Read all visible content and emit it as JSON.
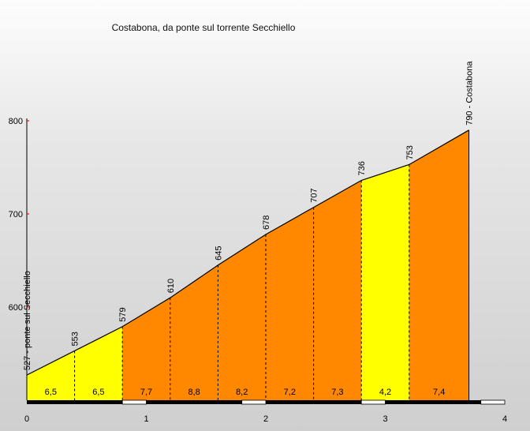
{
  "chart_data": {
    "type": "area",
    "title": "Costabona, da ponte sul torrente Secchiello",
    "xlabel": "",
    "ylabel": "",
    "xlim": [
      0,
      4
    ],
    "ylim": [
      510,
      800
    ],
    "x_ticks": [
      "0",
      "1",
      "2",
      "3",
      "4"
    ],
    "y_ticks": [
      "600",
      "700",
      "800"
    ],
    "grid": false,
    "points": [
      {
        "x": 0.0,
        "y": 527,
        "label": "527 - ponte sul Secchiello"
      },
      {
        "x": 0.4,
        "y": 553,
        "label": "553"
      },
      {
        "x": 0.8,
        "y": 579,
        "label": "579"
      },
      {
        "x": 1.2,
        "y": 610,
        "label": "610"
      },
      {
        "x": 1.6,
        "y": 645,
        "label": "645"
      },
      {
        "x": 2.0,
        "y": 678,
        "label": "678"
      },
      {
        "x": 2.4,
        "y": 707,
        "label": "707"
      },
      {
        "x": 2.8,
        "y": 736,
        "label": "736"
      },
      {
        "x": 3.2,
        "y": 753,
        "label": "753"
      },
      {
        "x": 3.7,
        "y": 790,
        "label": "790 - Costabona"
      }
    ],
    "segments": [
      {
        "label": "6,5",
        "color": "#ffff00"
      },
      {
        "label": "6,5",
        "color": "#ffff00"
      },
      {
        "label": "7,7",
        "color": "#ff8800"
      },
      {
        "label": "8,8",
        "color": "#ff8800"
      },
      {
        "label": "8,2",
        "color": "#ff8800"
      },
      {
        "label": "7,2",
        "color": "#ff8800"
      },
      {
        "label": "7,3",
        "color": "#ff8800"
      },
      {
        "label": "4,2",
        "color": "#ffff00"
      },
      {
        "label": "7,4",
        "color": "#ff8800"
      }
    ],
    "colors": {
      "low_gradient": "#ffff00",
      "high_gradient": "#ff8800",
      "axis": "#000000",
      "axis_tick_accent": "#cc0000"
    }
  }
}
